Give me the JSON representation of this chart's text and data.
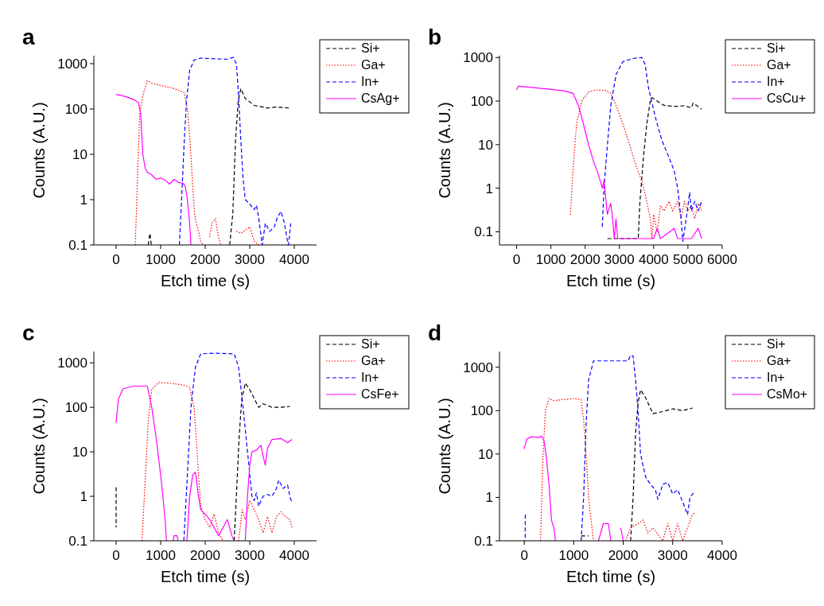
{
  "chart_data": [
    {
      "type": "line",
      "title": "a",
      "xlabel": "Etch time (s)",
      "ylabel": "Counts (A.U.)",
      "xlim": [
        -500,
        4500
      ],
      "xticks": [
        0,
        1000,
        2000,
        3000,
        4000
      ],
      "ylim": [
        0.1,
        1500
      ],
      "yticks": [
        0.1,
        1,
        10,
        100,
        1000
      ],
      "log": "y",
      "legend": "top right",
      "series": [
        {
          "name": "Si+",
          "color": "#000000",
          "line_style": "dashed",
          "x": [
            720,
            760,
            790,
            800,
            2550,
            2620,
            2680,
            2740,
            2800,
            2900,
            3100,
            3400,
            3600,
            3900
          ],
          "values": [
            0.1,
            0.18,
            0.1,
            null,
            0.1,
            0.5,
            20,
            150,
            280,
            170,
            120,
            105,
            110,
            105
          ]
        },
        {
          "name": "Ga+",
          "color": "#ff0000",
          "line_style": "dotted",
          "x": [
            430,
            480,
            530,
            600,
            700,
            800,
            1000,
            1200,
            1400,
            1530,
            1600,
            1660,
            1720,
            1760,
            1800,
            1850,
            1900,
            1950,
            2000,
            2100,
            2150,
            2230,
            2300,
            2350,
            2400,
            2700,
            2800,
            3000,
            3100,
            3200
          ],
          "values": [
            0.1,
            3,
            80,
            200,
            420,
            370,
            330,
            300,
            260,
            230,
            100,
            20,
            2,
            0.5,
            0.3,
            0.2,
            0.12,
            0.1,
            null,
            0.15,
            0.3,
            0.38,
            0.15,
            0.1,
            null,
            0.2,
            0.18,
            0.25,
            0.12,
            0.1
          ]
        },
        {
          "name": "In+",
          "color": "#0000ff",
          "line_style": "dashed",
          "x": [
            1420,
            1470,
            1530,
            1580,
            1650,
            1750,
            1900,
            2200,
            2500,
            2630,
            2700,
            2750,
            2800,
            2850,
            2900,
            3000,
            3100,
            3150,
            3200,
            3280,
            3350,
            3450,
            3550,
            3620,
            3700,
            3780,
            3830,
            3870,
            3920
          ],
          "values": [
            0.1,
            1,
            20,
            150,
            700,
            1200,
            1330,
            1280,
            1250,
            1380,
            1000,
            200,
            20,
            3,
            1,
            0.8,
            0.6,
            0.75,
            0.4,
            0.1,
            0.3,
            0.2,
            0.25,
            0.4,
            0.55,
            0.3,
            0.15,
            0.1,
            0.3
          ]
        },
        {
          "name": "CsAg+",
          "color": "#ff00ff",
          "line_style": "solid",
          "x": [
            0,
            200,
            400,
            500,
            550,
            600,
            650,
            700,
            800,
            900,
            1000,
            1100,
            1200,
            1300,
            1400,
            1500,
            1550,
            1600,
            1650,
            1680
          ],
          "values": [
            210,
            190,
            160,
            140,
            80,
            10,
            5,
            4,
            3.5,
            2.8,
            3,
            2.7,
            2.2,
            2.8,
            2.4,
            2.3,
            2,
            1,
            0.3,
            0.1
          ]
        }
      ]
    },
    {
      "type": "line",
      "title": "b",
      "xlabel": "Etch time (s)",
      "ylabel": "Counts (A.U.)",
      "xlim": [
        -500,
        6000
      ],
      "xticks": [
        0,
        1000,
        2000,
        3000,
        4000,
        5000,
        6000
      ],
      "ylim": [
        0.05,
        1100
      ],
      "yticks": [
        0.1,
        1,
        10,
        100,
        1000
      ],
      "log": "y",
      "legend": "top right",
      "series": [
        {
          "name": "Si+",
          "color": "#000000",
          "line_style": "dashed",
          "x": [
            2650,
            3550,
            3600,
            3700,
            3800,
            3900,
            3950,
            4100,
            4300,
            4600,
            4900,
            5100,
            5150,
            5300,
            5400
          ],
          "values": [
            0.07,
            0.07,
            0.5,
            5,
            30,
            100,
            120,
            100,
            80,
            75,
            78,
            70,
            90,
            75,
            65
          ]
        },
        {
          "name": "Ga+",
          "color": "#ff0000",
          "line_style": "dotted",
          "x": [
            1570,
            1650,
            1750,
            1900,
            2100,
            2300,
            2600,
            2750,
            2900,
            3100,
            3300,
            3500,
            3650,
            3800,
            3900,
            3950,
            4000,
            4100,
            4200,
            4300,
            4450,
            4550,
            4700,
            4800,
            4900,
            5000,
            5100,
            5200,
            5300,
            5400
          ],
          "values": [
            0.25,
            3,
            30,
            100,
            160,
            180,
            175,
            150,
            80,
            30,
            10,
            3,
            1.5,
            0.5,
            0.2,
            0.07,
            0.25,
            0.1,
            0.4,
            0.3,
            0.5,
            0.3,
            0.5,
            0.2,
            0.5,
            0.3,
            0.4,
            0.2,
            0.45,
            0.3
          ]
        },
        {
          "name": "In+",
          "color": "#0000ff",
          "line_style": "dashed",
          "x": [
            2500,
            2550,
            2650,
            2750,
            2900,
            3100,
            3400,
            3650,
            3750,
            3850,
            3950,
            4100,
            4250,
            4450,
            4600,
            4700,
            4800,
            4850,
            4950,
            5050,
            5100,
            5200,
            5300,
            5400
          ],
          "values": [
            0.13,
            1,
            10,
            80,
            400,
            800,
            950,
            1000,
            700,
            200,
            90,
            30,
            12,
            5,
            2.5,
            1,
            0.2,
            0.06,
            0.2,
            0.8,
            0.3,
            0.5,
            0.3,
            0.5
          ]
        },
        {
          "name": "CsCu+",
          "color": "#ff00ff",
          "line_style": "solid",
          "x": [
            0,
            50,
            300,
            600,
            1000,
            1400,
            1650,
            1800,
            1950,
            2100,
            2250,
            2350,
            2450,
            2500,
            2550,
            2600,
            2650,
            2700,
            2750,
            2800,
            2850,
            2900,
            2950,
            3200,
            3600,
            4000,
            4100,
            4200,
            4600,
            4700,
            5100,
            5300,
            5400
          ],
          "values": [
            180,
            220,
            210,
            200,
            185,
            170,
            150,
            80,
            30,
            10,
            4,
            2.5,
            1.4,
            1,
            1.5,
            0.6,
            0.25,
            0.35,
            0.45,
            0.2,
            0.07,
            0.2,
            0.07,
            0.07,
            0.07,
            0.07,
            0.12,
            0.07,
            0.12,
            0.07,
            0.07,
            0.12,
            0.07
          ]
        }
      ]
    },
    {
      "type": "line",
      "title": "c",
      "xlabel": "Etch time (s)",
      "ylabel": "Counts (A.U.)",
      "xlim": [
        -500,
        4500
      ],
      "xticks": [
        0,
        1000,
        2000,
        3000,
        4000
      ],
      "ylim": [
        0.1,
        1800
      ],
      "yticks": [
        0.1,
        1,
        10,
        100,
        1000
      ],
      "log": "y",
      "legend": "top right",
      "series": [
        {
          "name": "Si+",
          "color": "#000000",
          "line_style": "dashed",
          "x": [
            0,
            0,
            100,
            2650,
            2700,
            2760,
            2820,
            2900,
            3000,
            3200,
            3300,
            3500,
            3700,
            3900
          ],
          "values": [
            1.6,
            0.2,
            null,
            0.1,
            1,
            20,
            150,
            350,
            250,
            100,
            120,
            100,
            100,
            105
          ]
        },
        {
          "name": "Ga+",
          "color": "#ff0000",
          "line_style": "dotted",
          "x": [
            580,
            650,
            720,
            800,
            950,
            1200,
            1500,
            1650,
            1750,
            1800,
            1850,
            1900,
            2000,
            2100,
            2200,
            2300,
            2400,
            2500,
            2750,
            2830,
            2900,
            3000,
            3100,
            3200,
            3300,
            3400,
            3500,
            3600,
            3700,
            3800,
            3900,
            3950
          ],
          "values": [
            0.1,
            2,
            50,
            250,
            360,
            350,
            320,
            280,
            100,
            20,
            3,
            0.6,
            0.3,
            0.2,
            0.4,
            0.15,
            0.1,
            null,
            0.1,
            0.5,
            0.3,
            0.8,
            0.5,
            0.3,
            0.15,
            0.35,
            0.15,
            0.35,
            0.45,
            0.35,
            0.3,
            0.2
          ]
        },
        {
          "name": "In+",
          "color": "#0000ff",
          "line_style": "dashed",
          "x": [
            1520,
            1600,
            1680,
            1780,
            1900,
            2200,
            2650,
            2750,
            2850,
            2950,
            3050,
            3100,
            3150,
            3200,
            3300,
            3400,
            3500,
            3600,
            3650,
            3750,
            3850,
            3900,
            3950
          ],
          "values": [
            0.1,
            3,
            100,
            800,
            1600,
            1650,
            1600,
            800,
            100,
            10,
            1,
            0.8,
            1.2,
            0.6,
            1,
            1.1,
            1,
            1.5,
            2.3,
            1.5,
            1.8,
            1,
            0.7
          ]
        },
        {
          "name": "CsFe+",
          "color": "#ff00ff",
          "line_style": "solid",
          "x": [
            0,
            50,
            150,
            400,
            700,
            800,
            900,
            1000,
            1050,
            1100,
            1130,
            1200,
            1280,
            1300,
            1370,
            1390,
            1400,
            1590,
            1650,
            1720,
            1780,
            1850,
            1900,
            2000,
            2100,
            2200,
            2300,
            2400,
            2500,
            2600,
            2650,
            2800,
            2900,
            2950,
            3000,
            3050,
            3150,
            3250,
            3300,
            3350,
            3400,
            3500,
            3700,
            3850,
            3950
          ],
          "values": [
            45,
            150,
            260,
            300,
            300,
            100,
            20,
            3,
            1,
            0.3,
            0.1,
            null,
            0.1,
            0.13,
            0.13,
            0.1,
            null,
            0.1,
            1,
            3,
            3.5,
            1,
            0.5,
            0.4,
            0.3,
            0.2,
            0.13,
            0.2,
            0.3,
            0.13,
            0.1,
            null,
            0.1,
            1,
            5,
            10,
            11,
            14,
            8,
            5,
            12,
            19,
            20,
            16,
            19
          ]
        }
      ]
    },
    {
      "type": "line",
      "title": "d",
      "xlabel": "Etch time (s)",
      "ylabel": "Counts (A.U.)",
      "xlim": [
        -500,
        4000
      ],
      "xticks": [
        0,
        1000,
        2000,
        3000,
        4000
      ],
      "ylim": [
        0.1,
        2300
      ],
      "yticks": [
        0.1,
        1,
        10,
        100,
        1000
      ],
      "log": "y",
      "legend": "top right",
      "series": [
        {
          "name": "Si+",
          "color": "#000000",
          "line_style": "dashed",
          "x": [
            1150,
            1300,
            1400,
            2150,
            2200,
            2250,
            2300,
            2350,
            2450,
            2600,
            2800,
            3000,
            3200,
            3400
          ],
          "values": [
            0.13,
            0.13,
            null,
            0.1,
            1,
            30,
            150,
            300,
            200,
            85,
            95,
            110,
            100,
            115
          ]
        },
        {
          "name": "Ga+",
          "color": "#ff0000",
          "line_style": "dotted",
          "x": [
            330,
            380,
            430,
            500,
            600,
            800,
            1000,
            1150,
            1200,
            1250,
            1300,
            1350,
            1400,
            1500,
            2050,
            2150,
            2300,
            2400,
            2500,
            2600,
            2800,
            2900,
            3000,
            3100,
            3200,
            3300,
            3400,
            3450
          ],
          "values": [
            0.1,
            10,
            100,
            190,
            170,
            180,
            190,
            180,
            60,
            10,
            1,
            0.3,
            0.1,
            null,
            0.1,
            0.2,
            0.25,
            0.3,
            0.15,
            0.2,
            0.1,
            0.25,
            0.1,
            0.25,
            0.1,
            0.2,
            0.4,
            0.45
          ]
        },
        {
          "name": "In+",
          "color": "#0000ff",
          "line_style": "dashed",
          "x": [
            20,
            20,
            100,
            1150,
            1200,
            1250,
            1300,
            1400,
            1800,
            2100,
            2150,
            2200,
            2250,
            2300,
            2350,
            2450,
            2550,
            2650,
            2700,
            2800,
            2900,
            3000,
            3100,
            3200,
            3300,
            3350,
            3450
          ],
          "values": [
            0.4,
            0.1,
            null,
            0.1,
            1,
            50,
            500,
            1400,
            1400,
            1400,
            1900,
            1800,
            500,
            100,
            10,
            3,
            2,
            1.5,
            0.9,
            2,
            2.2,
            1.2,
            1.5,
            0.8,
            0.4,
            1,
            1.4
          ]
        },
        {
          "name": "CsMo+",
          "color": "#ff00ff",
          "line_style": "solid",
          "x": [
            0,
            50,
            150,
            300,
            350,
            400,
            450,
            500,
            550,
            600,
            630,
            700,
            1500,
            1600,
            1700,
            1750,
            1800,
            1950,
            2000
          ],
          "values": [
            13,
            22,
            25,
            24,
            26,
            20,
            8,
            2,
            0.3,
            0.2,
            0.1,
            null,
            0.1,
            0.25,
            0.25,
            0.1,
            null,
            0.2,
            0.1
          ]
        }
      ]
    }
  ]
}
